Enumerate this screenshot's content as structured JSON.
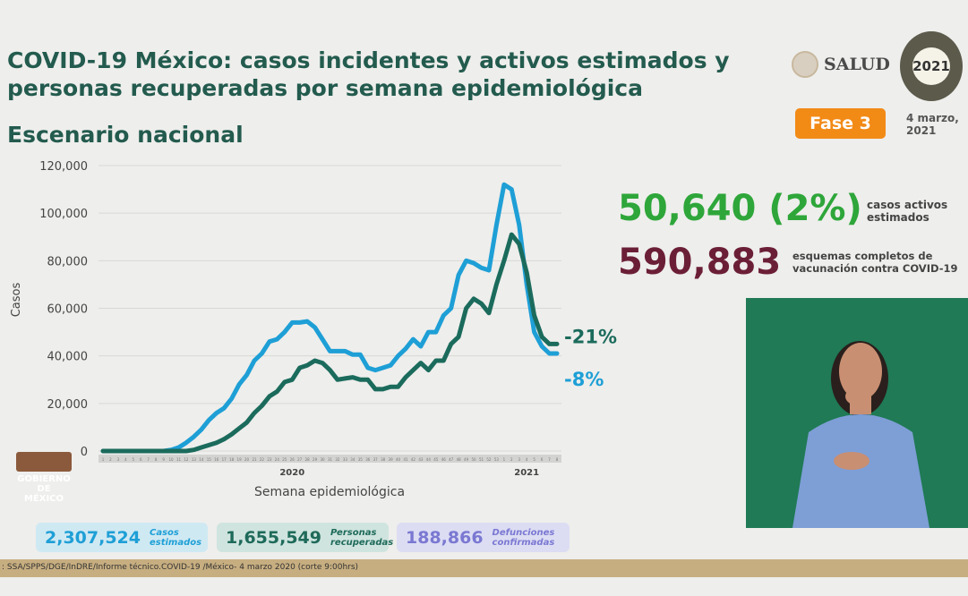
{
  "header": {
    "title": "COVID-19 México: casos incidentes y activos estimados y personas recuperadas por semana epidemiológica",
    "subtitle": "Escenario nacional",
    "salud_logo": "SALUD",
    "logo_2021": "2021",
    "phase": "Fase 3",
    "date": "4 marzo, 2021"
  },
  "highlights": {
    "active_value": "50,640 (2%)",
    "active_label": "casos activos estimados",
    "vaccine_value": "590,883",
    "vaccine_label": "esquemas completos de vacunación contra COVID-19"
  },
  "totals": [
    {
      "value": "2,307,524",
      "label": "Casos estimados",
      "color": "#1e9fd6",
      "bg": "#cfe9f3"
    },
    {
      "value": "1,655,549",
      "label": "Personas recuperadas",
      "color": "#1e6a5a",
      "bg": "#cfe4df"
    },
    {
      "value": "188,866",
      "label": "Defunciones confirmadas",
      "color": "#7a78d2",
      "bg": "#dcdcf3"
    }
  ],
  "footer": ": SSA/SPPS/DGE/InDRE/Informe técnico.COVID-19 /México- 4 marzo 2020 (corte 9:00hrs)",
  "gobierno_logo": "GOBIERNO DE MÉXICO",
  "colors": {
    "blue": "#1e9fd6",
    "green": "#1b6b5c",
    "title": "#235b4e",
    "orange": "#f28a16"
  },
  "chart_data": {
    "type": "line",
    "title": "",
    "xlabel": "Semana epidemiológica",
    "ylabel": "Casos",
    "ylim": [
      0,
      120000
    ],
    "yticks": [
      0,
      20000,
      40000,
      60000,
      80000,
      100000,
      120000
    ],
    "ytick_labels": [
      "0",
      "20,000",
      "40,000",
      "60,000",
      "80,000",
      "100,000",
      "120,000"
    ],
    "x": [
      "1",
      "2",
      "3",
      "4",
      "5",
      "6",
      "7",
      "8",
      "9",
      "10",
      "11",
      "12",
      "13",
      "14",
      "15",
      "16",
      "17",
      "18",
      "19",
      "20",
      "21",
      "22",
      "23",
      "24",
      "25",
      "26",
      "27",
      "28",
      "29",
      "30",
      "31",
      "32",
      "33",
      "34",
      "35",
      "36",
      "37",
      "38",
      "39",
      "40",
      "41",
      "42",
      "43",
      "44",
      "45",
      "46",
      "47",
      "48",
      "49",
      "50",
      "51",
      "52",
      "53",
      "1",
      "2",
      "3",
      "4",
      "5",
      "6",
      "7",
      "8"
    ],
    "year_labels": [
      {
        "label": "2020",
        "at": "26"
      },
      {
        "label": "2021",
        "at": "4"
      }
    ],
    "grid": true,
    "series": [
      {
        "color": "#1e9fd6",
        "end_label": "-8%",
        "values": [
          0,
          0,
          0,
          0,
          0,
          0,
          0,
          0,
          0,
          500,
          1500,
          3500,
          6000,
          9000,
          13000,
          16000,
          18000,
          22000,
          28000,
          32000,
          38000,
          41000,
          46000,
          47000,
          50000,
          54000,
          54000,
          54500,
          52000,
          47000,
          42000,
          42000,
          42000,
          40500,
          40500,
          35000,
          34000,
          35000,
          36000,
          40000,
          43000,
          47000,
          44000,
          50000,
          50000,
          57000,
          60000,
          74000,
          80000,
          79000,
          77000,
          76000,
          95000,
          112000,
          110000,
          95000,
          70000,
          50000,
          44000,
          41000,
          41000
        ]
      },
      {
        "color": "#1b6b5c",
        "end_label": "-21%",
        "values": [
          0,
          0,
          0,
          0,
          0,
          0,
          0,
          0,
          0,
          0,
          0,
          0,
          500,
          1500,
          2500,
          3500,
          5000,
          7000,
          9500,
          12000,
          16000,
          19000,
          23000,
          25000,
          29000,
          30000,
          35000,
          36000,
          38000,
          37000,
          34000,
          30000,
          30500,
          31000,
          30000,
          30000,
          26000,
          26000,
          27000,
          27000,
          31000,
          34000,
          37000,
          34000,
          38000,
          38000,
          45000,
          48000,
          60000,
          64000,
          62000,
          58000,
          70000,
          80000,
          91000,
          87000,
          75000,
          57000,
          48000,
          45000,
          45000
        ]
      }
    ]
  }
}
